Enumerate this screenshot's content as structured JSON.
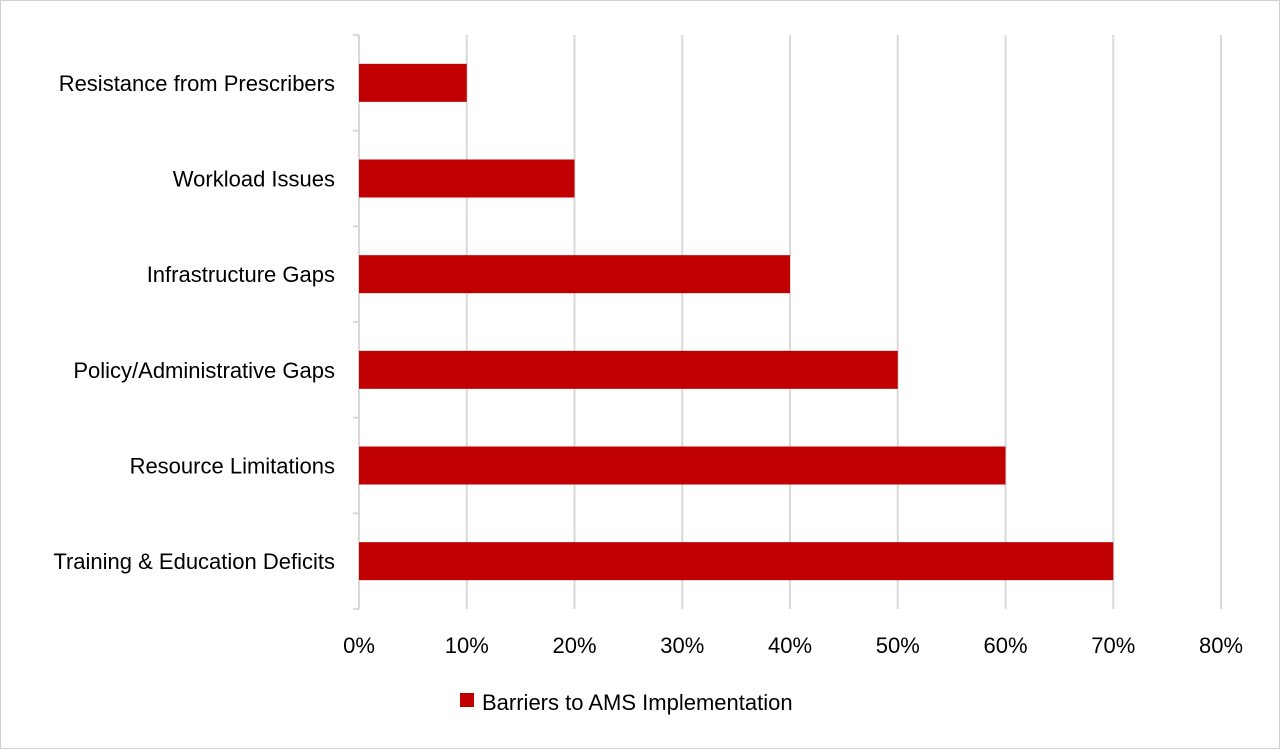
{
  "chart_data": {
    "type": "bar",
    "orientation": "horizontal",
    "categories": [
      "Training & Education Deficits",
      "Resource Limitations",
      "Policy/Administrative Gaps",
      "Infrastructure Gaps",
      "Workload Issues",
      "Resistance from Prescribers"
    ],
    "series": [
      {
        "name": "Barriers to AMS Implementation",
        "values": [
          70,
          60,
          50,
          40,
          20,
          10
        ],
        "color": "#c00000"
      }
    ],
    "xlim": [
      0,
      80
    ],
    "x_ticks": [
      "0%",
      "10%",
      "20%",
      "30%",
      "40%",
      "50%",
      "60%",
      "70%",
      "80%"
    ],
    "grid": true,
    "legend": "bottom",
    "title": "",
    "xlabel": "",
    "ylabel": ""
  }
}
